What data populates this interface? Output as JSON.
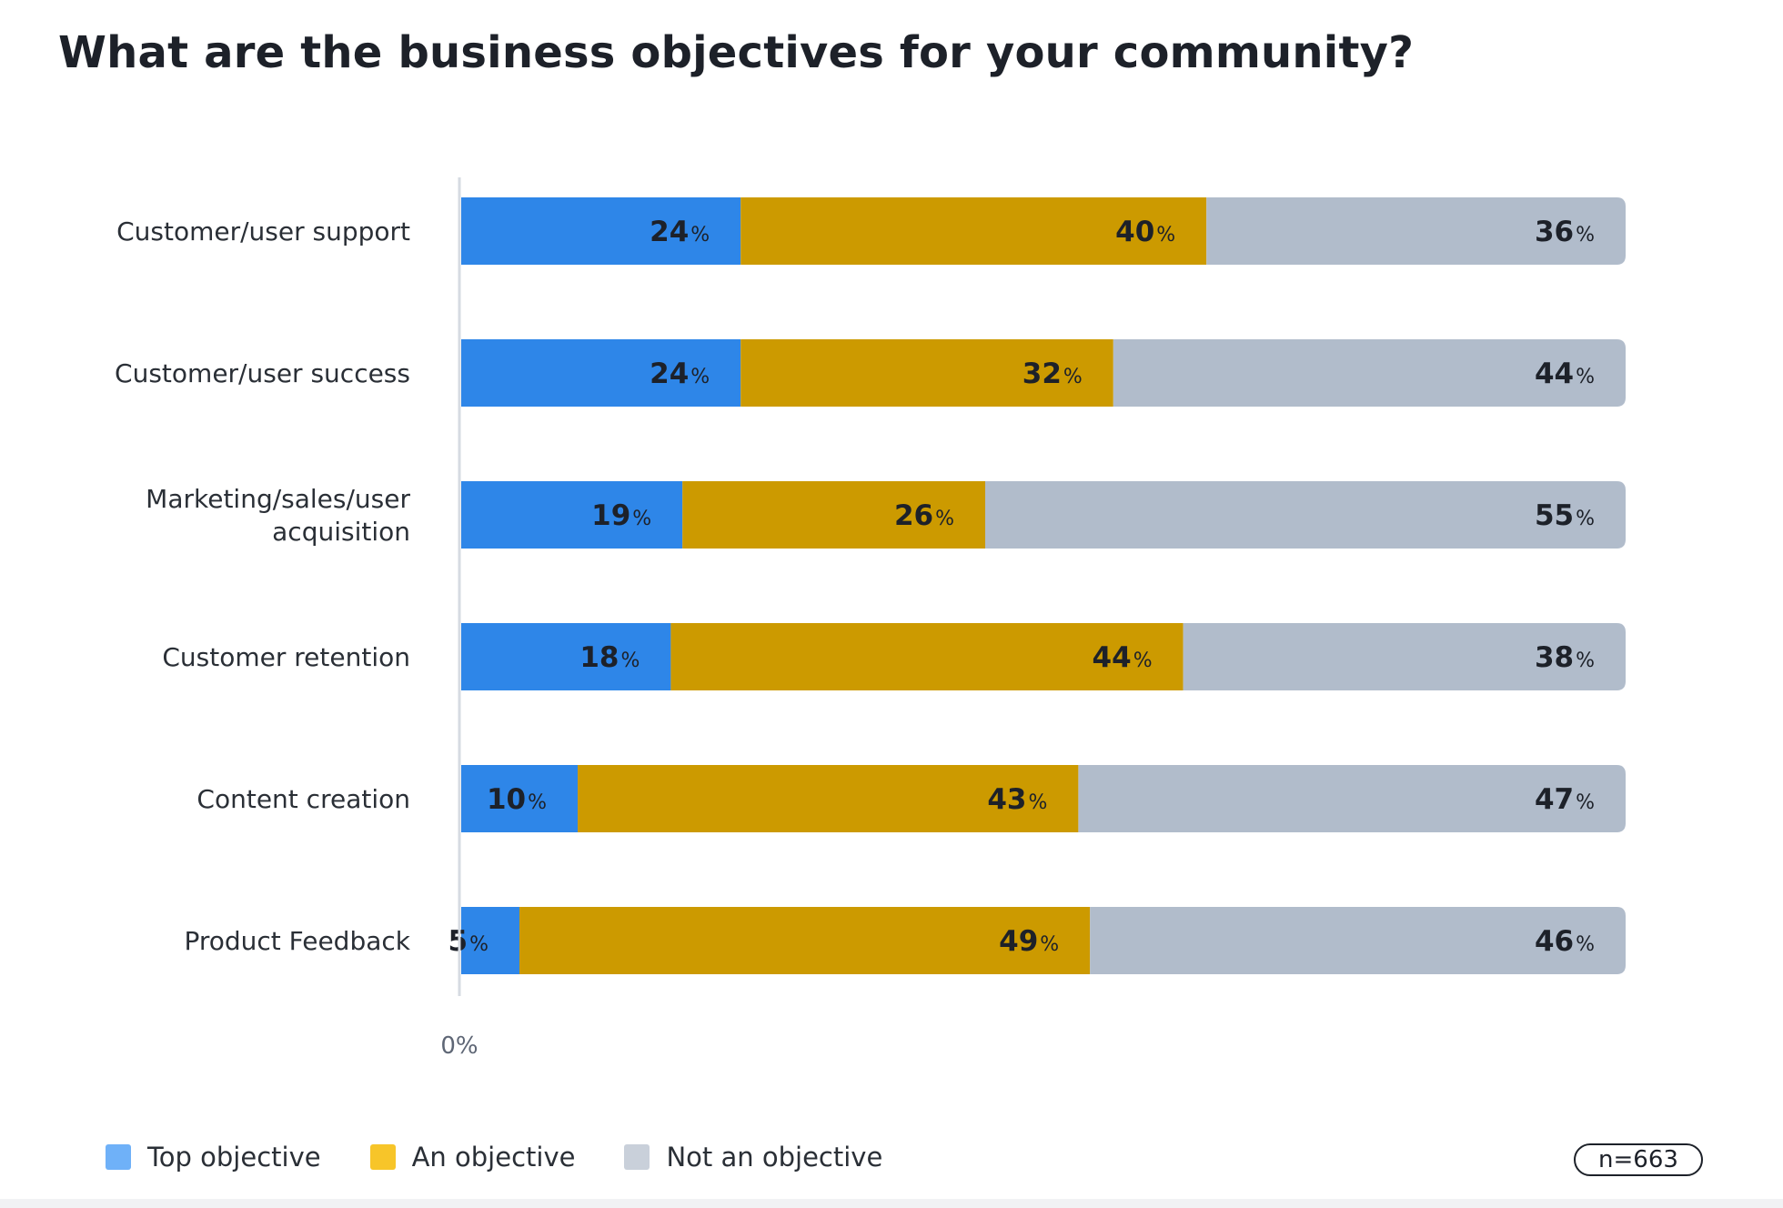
{
  "title": "What are the business objectives for your community?",
  "chart_data": {
    "type": "bar",
    "orientation": "horizontal",
    "stacked": true,
    "title": "What are the business objectives for your community?",
    "categories": [
      "Customer/user support",
      "Customer/user success",
      "Marketing/sales/user acquisition",
      "Customer retention",
      "Content creation",
      "Product Feedback"
    ],
    "series": [
      {
        "name": "Top objective",
        "color": "#2e86e8",
        "values": [
          24,
          24,
          19,
          18,
          10,
          5
        ]
      },
      {
        "name": "An objective",
        "color": "#cc9a00",
        "values": [
          40,
          32,
          26,
          44,
          43,
          49
        ]
      },
      {
        "name": "Not an objective",
        "color": "#b1bccb",
        "values": [
          36,
          44,
          55,
          38,
          47,
          46
        ]
      }
    ],
    "x_tick_labels": [
      "0%"
    ],
    "xlim": [
      0,
      100
    ],
    "value_suffix": "%",
    "grid": false,
    "legend_position": "bottom-left"
  },
  "legend": [
    {
      "label": "Top objective",
      "color": "#6fb1f8"
    },
    {
      "label": "An objective",
      "color": "#f7c529"
    },
    {
      "label": "Not an objective",
      "color": "#c9d0da"
    }
  ],
  "sample_size": "n=663"
}
